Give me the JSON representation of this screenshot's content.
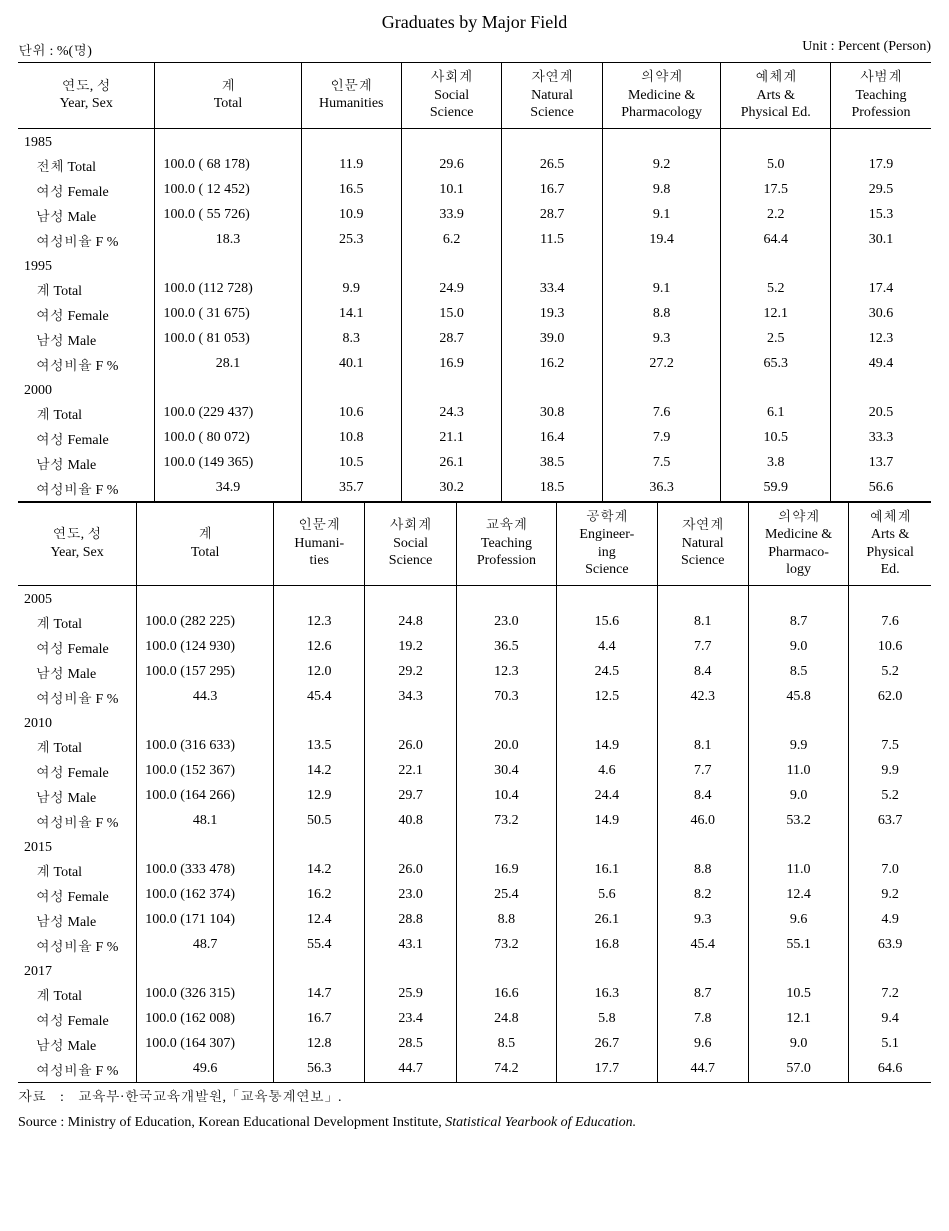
{
  "title": "Graduates by Major Field",
  "unit_left": "단위 : %(명)",
  "unit_right": "Unit : Percent (Person)",
  "header1": {
    "c0": "연도, 성\nYear, Sex",
    "c1": "계\nTotal",
    "c2": "인문계\nHumanities",
    "c3": "사회계\nSocial\nScience",
    "c4": "자연계\nNatural\nScience",
    "c5": "의약계\nMedicine &\nPharmacology",
    "c6": "예체계\nArts &\nPhysical Ed.",
    "c7": "사범계\nTeaching\nProfession"
  },
  "row_labels": {
    "total_kr": "전체 Total",
    "total": "계 Total",
    "female": "여성 Female",
    "male": "남성 Male",
    "fpct": "여성비율 F %"
  },
  "section1": [
    {
      "year": "1985",
      "rows": [
        {
          "label": "total_kr",
          "total": "100.0 ( 68 178)",
          "v": [
            "11.9",
            "29.6",
            "26.5",
            "9.2",
            "5.0",
            "17.9"
          ]
        },
        {
          "label": "female",
          "total": "100.0 ( 12 452)",
          "v": [
            "16.5",
            "10.1",
            "16.7",
            "9.8",
            "17.5",
            "29.5"
          ]
        },
        {
          "label": "male",
          "total": "100.0 ( 55 726)",
          "v": [
            "10.9",
            "33.9",
            "28.7",
            "9.1",
            "2.2",
            "15.3"
          ]
        },
        {
          "label": "fpct",
          "total": "18.3",
          "v": [
            "25.3",
            "6.2",
            "11.5",
            "19.4",
            "64.4",
            "30.1"
          ]
        }
      ]
    },
    {
      "year": "1995",
      "rows": [
        {
          "label": "total",
          "total": "100.0 (112 728)",
          "v": [
            "9.9",
            "24.9",
            "33.4",
            "9.1",
            "5.2",
            "17.4"
          ]
        },
        {
          "label": "female",
          "total": "100.0 ( 31 675)",
          "v": [
            "14.1",
            "15.0",
            "19.3",
            "8.8",
            "12.1",
            "30.6"
          ]
        },
        {
          "label": "male",
          "total": "100.0 ( 81 053)",
          "v": [
            "8.3",
            "28.7",
            "39.0",
            "9.3",
            "2.5",
            "12.3"
          ]
        },
        {
          "label": "fpct",
          "total": "28.1",
          "v": [
            "40.1",
            "16.9",
            "16.2",
            "27.2",
            "65.3",
            "49.4"
          ]
        }
      ]
    },
    {
      "year": "2000",
      "rows": [
        {
          "label": "total",
          "total": "100.0 (229 437)",
          "v": [
            "10.6",
            "24.3",
            "30.8",
            "7.6",
            "6.1",
            "20.5"
          ]
        },
        {
          "label": "female",
          "total": "100.0 ( 80 072)",
          "v": [
            "10.8",
            "21.1",
            "16.4",
            "7.9",
            "10.5",
            "33.3"
          ]
        },
        {
          "label": "male",
          "total": "100.0 (149 365)",
          "v": [
            "10.5",
            "26.1",
            "38.5",
            "7.5",
            "3.8",
            "13.7"
          ]
        },
        {
          "label": "fpct",
          "total": "34.9",
          "v": [
            "35.7",
            "30.2",
            "18.5",
            "36.3",
            "59.9",
            "56.6"
          ]
        }
      ]
    }
  ],
  "header2": {
    "c0": "연도, 성\nYear, Sex",
    "c1": "계\nTotal",
    "c2": "인문계\nHumani-\nties",
    "c3": "사회계\nSocial\nScience",
    "c4": "교육계\nTeaching\nProfession",
    "c5": "공학계\nEngineer-\ning\nScience",
    "c6": "자연계\nNatural\nScience",
    "c7": "의약계\nMedicine &\nPharmaco-\nlogy",
    "c8": "예체계\nArts &\nPhysical\nEd."
  },
  "section2": [
    {
      "year": "2005",
      "rows": [
        {
          "label": "total",
          "total": "100.0 (282 225)",
          "v": [
            "12.3",
            "24.8",
            "23.0",
            "15.6",
            "8.1",
            "8.7",
            "7.6"
          ]
        },
        {
          "label": "female",
          "total": "100.0 (124 930)",
          "v": [
            "12.6",
            "19.2",
            "36.5",
            "4.4",
            "7.7",
            "9.0",
            "10.6"
          ]
        },
        {
          "label": "male",
          "total": "100.0 (157 295)",
          "v": [
            "12.0",
            "29.2",
            "12.3",
            "24.5",
            "8.4",
            "8.5",
            "5.2"
          ]
        },
        {
          "label": "fpct",
          "total": "44.3",
          "v": [
            "45.4",
            "34.3",
            "70.3",
            "12.5",
            "42.3",
            "45.8",
            "62.0"
          ]
        }
      ]
    },
    {
      "year": "2010",
      "rows": [
        {
          "label": "total",
          "total": "100.0 (316 633)",
          "v": [
            "13.5",
            "26.0",
            "20.0",
            "14.9",
            "8.1",
            "9.9",
            "7.5"
          ]
        },
        {
          "label": "female",
          "total": "100.0 (152 367)",
          "v": [
            "14.2",
            "22.1",
            "30.4",
            "4.6",
            "7.7",
            "11.0",
            "9.9"
          ]
        },
        {
          "label": "male",
          "total": "100.0 (164 266)",
          "v": [
            "12.9",
            "29.7",
            "10.4",
            "24.4",
            "8.4",
            "9.0",
            "5.2"
          ]
        },
        {
          "label": "fpct",
          "total": "48.1",
          "v": [
            "50.5",
            "40.8",
            "73.2",
            "14.9",
            "46.0",
            "53.2",
            "63.7"
          ]
        }
      ]
    },
    {
      "year": "2015",
      "rows": [
        {
          "label": "total",
          "total": "100.0 (333 478)",
          "v": [
            "14.2",
            "26.0",
            "16.9",
            "16.1",
            "8.8",
            "11.0",
            "7.0"
          ]
        },
        {
          "label": "female",
          "total": "100.0 (162 374)",
          "v": [
            "16.2",
            "23.0",
            "25.4",
            "5.6",
            "8.2",
            "12.4",
            "9.2"
          ]
        },
        {
          "label": "male",
          "total": "100.0 (171 104)",
          "v": [
            "12.4",
            "28.8",
            "8.8",
            "26.1",
            "9.3",
            "9.6",
            "4.9"
          ]
        },
        {
          "label": "fpct",
          "total": "48.7",
          "v": [
            "55.4",
            "43.1",
            "73.2",
            "16.8",
            "45.4",
            "55.1",
            "63.9"
          ]
        }
      ]
    },
    {
      "year": "2017",
      "rows": [
        {
          "label": "total",
          "total": "100.0 (326 315)",
          "v": [
            "14.7",
            "25.9",
            "16.6",
            "16.3",
            "8.7",
            "10.5",
            "7.2"
          ]
        },
        {
          "label": "female",
          "total": "100.0 (162 008)",
          "v": [
            "16.7",
            "23.4",
            "24.8",
            "5.8",
            "7.8",
            "12.1",
            "9.4"
          ]
        },
        {
          "label": "male",
          "total": "100.0 (164 307)",
          "v": [
            "12.8",
            "28.5",
            "8.5",
            "26.7",
            "9.6",
            "9.0",
            "5.1"
          ]
        },
        {
          "label": "fpct",
          "total": "49.6",
          "v": [
            "56.3",
            "44.7",
            "74.2",
            "17.7",
            "44.7",
            "57.0",
            "64.6"
          ]
        }
      ]
    }
  ],
  "footnote_kr": "자료　:　교육부·한국교육개발원,「교육통계연보」.",
  "footnote_en_prefix": "Source :  Ministry of Education, Korean Educational Development Institute, ",
  "footnote_en_italic": "Statistical Yearbook of Education."
}
